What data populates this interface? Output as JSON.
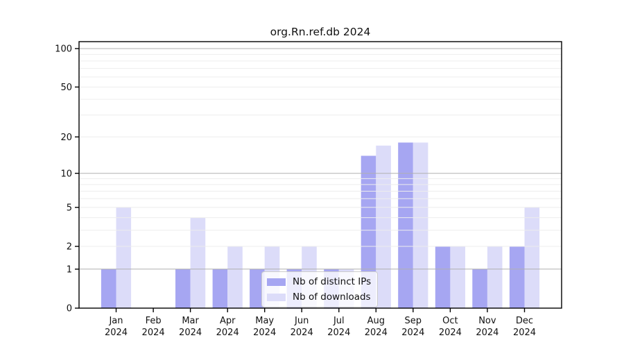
{
  "chart_data": {
    "type": "bar",
    "title": "org.Rn.ref.db 2024",
    "categories": [
      "Jan 2024",
      "Feb 2024",
      "Mar 2024",
      "Apr 2024",
      "May 2024",
      "Jun 2024",
      "Jul 2024",
      "Aug 2024",
      "Sep 2024",
      "Oct 2024",
      "Nov 2024",
      "Dec 2024"
    ],
    "series": [
      {
        "name": "Nb of distinct IPs",
        "color": "#a6a6f2",
        "values": [
          1,
          0,
          1,
          1,
          1,
          1,
          1,
          14,
          18,
          2,
          1,
          2
        ]
      },
      {
        "name": "Nb of downloads",
        "color": "#dcdcf9",
        "values": [
          5,
          0,
          4,
          2,
          2,
          2,
          1,
          17,
          18,
          2,
          2,
          5
        ]
      }
    ],
    "xlabel": "",
    "ylabel": "",
    "y_scale": "log1p",
    "ylim": [
      0,
      100
    ],
    "y_major_ticks": [
      0,
      1,
      2,
      5,
      10,
      20,
      50,
      100
    ],
    "y_minor_ticks": [
      3,
      4,
      6,
      7,
      8,
      9,
      30,
      40,
      60,
      70,
      80,
      90
    ],
    "grid": true,
    "grid_over_bars": true,
    "legend_position": "lower center"
  },
  "colors": {
    "grid_decade": "#b0b0b0",
    "grid_minor": "#ededed",
    "spine": "#000000",
    "background": "#ffffff"
  }
}
